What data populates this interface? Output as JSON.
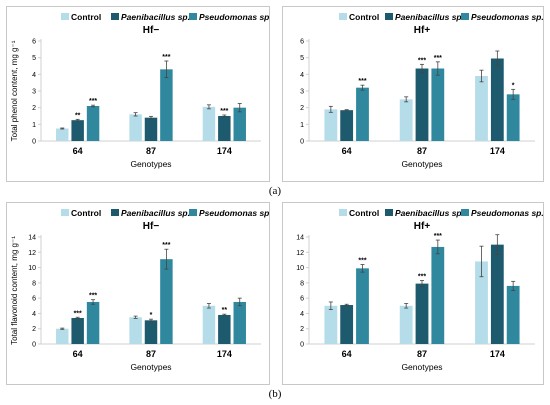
{
  "colors": {
    "control": "#b4dde9",
    "paeni": "#1e5a6e",
    "pseudo": "#2f889e",
    "error": "#444444",
    "axis": "#d0d0d0"
  },
  "figure_labels": {
    "a": "(a)",
    "b": "(b)"
  },
  "chart_data": [
    {
      "type": "bar",
      "panel": "a-left",
      "title": "Hf−",
      "ylabel": "Total phenol content, mg g⁻¹",
      "xlabel": "Genotypes",
      "ylim": [
        0,
        6
      ],
      "yticks": [
        0,
        1,
        2,
        3,
        4,
        5,
        6
      ],
      "categories": [
        "64",
        "87",
        "174"
      ],
      "legend": "top",
      "series": [
        {
          "name": "Control",
          "values": [
            0.75,
            1.6,
            2.05
          ],
          "errors": [
            0.03,
            0.1,
            0.12
          ],
          "sig": [
            "",
            "",
            ""
          ]
        },
        {
          "name": "Paenibacillus sp.",
          "values": [
            1.25,
            1.4,
            1.5
          ],
          "errors": [
            0.05,
            0.08,
            0.06
          ],
          "sig": [
            "**",
            "",
            "***"
          ]
        },
        {
          "name": "Pseudomonas sp.",
          "values": [
            2.1,
            4.3,
            2.0
          ],
          "errors": [
            0.05,
            0.5,
            0.25
          ],
          "sig": [
            "***",
            "***",
            ""
          ]
        }
      ]
    },
    {
      "type": "bar",
      "panel": "a-right",
      "title": "Hf+",
      "ylabel": "",
      "xlabel": "Genotypes",
      "ylim": [
        0,
        6
      ],
      "yticks": [
        0,
        1,
        2,
        3,
        4,
        5,
        6
      ],
      "categories": [
        "64",
        "87",
        "174"
      ],
      "legend": "top",
      "series": [
        {
          "name": "Control",
          "values": [
            1.9,
            2.5,
            3.9
          ],
          "errors": [
            0.18,
            0.15,
            0.35
          ],
          "sig": [
            "",
            "",
            ""
          ]
        },
        {
          "name": "Paenibacillus sp.",
          "values": [
            1.85,
            4.35,
            4.95
          ],
          "errors": [
            0.03,
            0.25,
            0.45
          ],
          "sig": [
            "",
            "***",
            ""
          ]
        },
        {
          "name": "Pseudomonas sp.",
          "values": [
            3.2,
            4.35,
            2.8
          ],
          "errors": [
            0.15,
            0.4,
            0.3
          ],
          "sig": [
            "***",
            "***",
            "*"
          ]
        }
      ]
    },
    {
      "type": "bar",
      "panel": "b-left",
      "title": "Hf−",
      "ylabel": "Total flavonoid content, mg g⁻¹",
      "xlabel": "Genotypes",
      "ylim": [
        0,
        14
      ],
      "yticks": [
        0,
        2,
        4,
        6,
        8,
        10,
        12,
        14
      ],
      "categories": [
        "64",
        "87",
        "174"
      ],
      "legend": "top",
      "series": [
        {
          "name": "Control",
          "values": [
            2.0,
            3.5,
            5.0
          ],
          "errors": [
            0.08,
            0.15,
            0.3
          ],
          "sig": [
            "",
            "",
            ""
          ]
        },
        {
          "name": "Paenibacillus sp.",
          "values": [
            3.4,
            3.1,
            3.8
          ],
          "errors": [
            0.1,
            0.15,
            0.1
          ],
          "sig": [
            "***",
            "*",
            "**"
          ]
        },
        {
          "name": "Pseudomonas sp.",
          "values": [
            5.5,
            11.1,
            5.5
          ],
          "errors": [
            0.3,
            1.3,
            0.5
          ],
          "sig": [
            "***",
            "***",
            ""
          ]
        }
      ]
    },
    {
      "type": "bar",
      "panel": "b-right",
      "title": "Hf+",
      "ylabel": "",
      "xlabel": "Genotypes",
      "ylim": [
        0,
        14
      ],
      "yticks": [
        0,
        2,
        4,
        6,
        8,
        10,
        12,
        14
      ],
      "categories": [
        "64",
        "87",
        "174"
      ],
      "legend": "top",
      "series": [
        {
          "name": "Control",
          "values": [
            5.0,
            5.0,
            10.8
          ],
          "errors": [
            0.5,
            0.3,
            2.0
          ],
          "sig": [
            "",
            "",
            ""
          ]
        },
        {
          "name": "Paenibacillus sp.",
          "values": [
            5.1,
            7.9,
            13.0
          ],
          "errors": [
            0.1,
            0.4,
            1.3
          ],
          "sig": [
            "",
            "***",
            ""
          ]
        },
        {
          "name": "Pseudomonas sp.",
          "values": [
            9.9,
            12.7,
            7.6
          ],
          "errors": [
            0.5,
            0.9,
            0.6
          ],
          "sig": [
            "***",
            "***",
            ""
          ]
        }
      ]
    }
  ]
}
